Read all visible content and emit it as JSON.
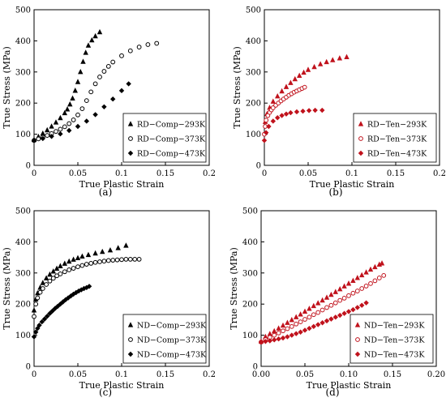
{
  "colors": {
    "black": "#000000",
    "red": "#c0121c"
  },
  "chart_data": [
    {
      "type": "scatter",
      "panel_label": "(a)",
      "xlabel": "True Plastic Strain",
      "ylabel": "True Stress (MPa)",
      "xlim": [
        0,
        0.2
      ],
      "ylim": [
        0,
        500
      ],
      "xticks": [
        "0",
        "0.05",
        "0.1",
        "0.15",
        "0.2"
      ],
      "yticks": [
        "0",
        "100",
        "200",
        "300",
        "400",
        "500"
      ],
      "legend_position": "bottom-right",
      "series": [
        {
          "name": "RD−Comp−293K",
          "marker": "triangle",
          "color": "#000000",
          "x": [
            0.0,
            0.005,
            0.01,
            0.015,
            0.02,
            0.025,
            0.03,
            0.035,
            0.038,
            0.041,
            0.044,
            0.047,
            0.05,
            0.053,
            0.056,
            0.059,
            0.062,
            0.066,
            0.07,
            0.075
          ],
          "y": [
            82,
            92,
            102,
            113,
            125,
            138,
            152,
            168,
            180,
            196,
            215,
            240,
            268,
            300,
            333,
            362,
            385,
            402,
            415,
            428
          ]
        },
        {
          "name": "RD−Comp−373K",
          "marker": "circle-open",
          "color": "#000000",
          "x": [
            0.0,
            0.005,
            0.01,
            0.015,
            0.02,
            0.025,
            0.03,
            0.035,
            0.04,
            0.045,
            0.05,
            0.055,
            0.06,
            0.065,
            0.07,
            0.075,
            0.08,
            0.085,
            0.09,
            0.1,
            0.11,
            0.12,
            0.13,
            0.14
          ],
          "y": [
            80,
            85,
            90,
            96,
            102,
            109,
            116,
            124,
            134,
            146,
            162,
            182,
            208,
            236,
            262,
            284,
            302,
            318,
            332,
            352,
            368,
            380,
            388,
            392
          ]
        },
        {
          "name": "RD−Comp−473K",
          "marker": "diamond",
          "color": "#000000",
          "x": [
            0.0,
            0.01,
            0.02,
            0.03,
            0.04,
            0.05,
            0.06,
            0.07,
            0.08,
            0.09,
            0.1,
            0.108
          ],
          "y": [
            80,
            86,
            93,
            101,
            112,
            125,
            142,
            163,
            188,
            213,
            240,
            262
          ]
        }
      ]
    },
    {
      "type": "scatter",
      "panel_label": "(b)",
      "xlabel": "True Plastic Strain",
      "ylabel": "True Stress (MPa)",
      "xlim": [
        0,
        0.2
      ],
      "ylim": [
        0,
        500
      ],
      "xticks": [
        "0",
        "0.05",
        "0.1",
        "0.15",
        "0.2"
      ],
      "yticks": [
        "0",
        "100",
        "200",
        "300",
        "400",
        "500"
      ],
      "legend_position": "bottom-right",
      "series": [
        {
          "name": "RD−Ten−293K",
          "marker": "triangle",
          "color": "#c0121c",
          "x": [
            0.001,
            0.003,
            0.006,
            0.01,
            0.015,
            0.02,
            0.025,
            0.03,
            0.035,
            0.04,
            0.045,
            0.05,
            0.057,
            0.064,
            0.071,
            0.078,
            0.086,
            0.094
          ],
          "y": [
            140,
            165,
            185,
            205,
            222,
            238,
            252,
            265,
            277,
            288,
            298,
            307,
            316,
            325,
            332,
            338,
            344,
            348
          ]
        },
        {
          "name": "RD−Ten−373K",
          "marker": "circle-open",
          "color": "#c0121c",
          "x": [
            0.0,
            0.001,
            0.002,
            0.004,
            0.006,
            0.008,
            0.01,
            0.013,
            0.016,
            0.019,
            0.022,
            0.025,
            0.028,
            0.031,
            0.034,
            0.037,
            0.04,
            0.043,
            0.046
          ],
          "y": [
            100,
            125,
            145,
            160,
            170,
            178,
            185,
            193,
            200,
            207,
            213,
            219,
            225,
            230,
            235,
            239,
            243,
            247,
            251
          ]
        },
        {
          "name": "RD−Ten−473K",
          "marker": "diamond",
          "color": "#c0121c",
          "x": [
            0.0,
            0.002,
            0.005,
            0.01,
            0.015,
            0.02,
            0.025,
            0.03,
            0.037,
            0.044,
            0.051,
            0.058,
            0.066
          ],
          "y": [
            80,
            105,
            125,
            142,
            153,
            160,
            165,
            169,
            172,
            174,
            176,
            177,
            177
          ]
        }
      ]
    },
    {
      "type": "scatter",
      "panel_label": "(c)",
      "xlabel": "True Plastic Strain",
      "ylabel": "True Stress (MPa)",
      "xlim": [
        0,
        0.2
      ],
      "ylim": [
        0,
        500
      ],
      "xticks": [
        "0",
        "0.05",
        "0.1",
        "0.15",
        "0.2"
      ],
      "yticks": [
        "0",
        "100",
        "200",
        "300",
        "400",
        "500"
      ],
      "legend_position": "bottom-right",
      "series": [
        {
          "name": "ND−Comp−293K",
          "marker": "triangle",
          "color": "#000000",
          "x": [
            0.0,
            0.002,
            0.004,
            0.007,
            0.01,
            0.014,
            0.018,
            0.022,
            0.026,
            0.03,
            0.035,
            0.04,
            0.045,
            0.05,
            0.055,
            0.062,
            0.07,
            0.078,
            0.087,
            0.096,
            0.105
          ],
          "y": [
            180,
            215,
            235,
            253,
            268,
            283,
            295,
            305,
            314,
            322,
            330,
            337,
            343,
            348,
            353,
            358,
            363,
            368,
            373,
            380,
            388
          ]
        },
        {
          "name": "ND−Comp−373K",
          "marker": "circle-open",
          "color": "#000000",
          "x": [
            0.0,
            0.002,
            0.004,
            0.007,
            0.01,
            0.014,
            0.018,
            0.022,
            0.026,
            0.03,
            0.035,
            0.04,
            0.045,
            0.05,
            0.055,
            0.06,
            0.065,
            0.07,
            0.075,
            0.08,
            0.085,
            0.09,
            0.095,
            0.1,
            0.105,
            0.11,
            0.115,
            0.12
          ],
          "y": [
            160,
            200,
            220,
            238,
            250,
            263,
            274,
            283,
            291,
            297,
            304,
            310,
            315,
            320,
            324,
            328,
            331,
            334,
            336,
            338,
            340,
            341,
            342,
            343,
            344,
            344,
            344,
            344
          ]
        },
        {
          "name": "ND−Comp−473K",
          "marker": "diamond",
          "color": "#000000",
          "x": [
            0.0,
            0.002,
            0.004,
            0.006,
            0.009,
            0.012,
            0.015,
            0.018,
            0.021,
            0.024,
            0.027,
            0.03,
            0.033,
            0.036,
            0.039,
            0.042,
            0.045,
            0.048,
            0.051,
            0.054,
            0.057,
            0.06,
            0.063
          ],
          "y": [
            95,
            110,
            122,
            132,
            143,
            152,
            161,
            170,
            178,
            186,
            193,
            200,
            207,
            214,
            220,
            226,
            232,
            237,
            242,
            246,
            250,
            253,
            257
          ]
        }
      ]
    },
    {
      "type": "scatter",
      "panel_label": "(d)",
      "xlabel": "True Plastic Strain",
      "ylabel": "True Stress (MPa)",
      "xlim": [
        0,
        0.2
      ],
      "ylim": [
        0,
        500
      ],
      "xticks": [
        "0.00",
        "0.05",
        "0.10",
        "0.15",
        "0.20"
      ],
      "yticks": [
        "0",
        "100",
        "200",
        "300",
        "400",
        "500"
      ],
      "legend_position": "bottom-right",
      "series": [
        {
          "name": "ND−Ten−293K",
          "marker": "triangle",
          "color": "#c0121c",
          "x": [
            0.0,
            0.005,
            0.01,
            0.015,
            0.02,
            0.025,
            0.03,
            0.035,
            0.04,
            0.045,
            0.05,
            0.055,
            0.06,
            0.065,
            0.07,
            0.075,
            0.08,
            0.085,
            0.09,
            0.095,
            0.1,
            0.105,
            0.11,
            0.115,
            0.12,
            0.125,
            0.13,
            0.135,
            0.138
          ],
          "y": [
            80,
            95,
            104,
            113,
            122,
            131,
            140,
            149,
            158,
            167,
            176,
            185,
            194,
            203,
            212,
            221,
            230,
            239,
            248,
            257,
            266,
            275,
            284,
            293,
            302,
            311,
            319,
            327,
            331
          ]
        },
        {
          "name": "ND−Ten−373K",
          "marker": "circle-open",
          "color": "#c0121c",
          "x": [
            0.0,
            0.005,
            0.01,
            0.015,
            0.02,
            0.025,
            0.03,
            0.035,
            0.04,
            0.045,
            0.05,
            0.055,
            0.06,
            0.065,
            0.07,
            0.075,
            0.08,
            0.085,
            0.09,
            0.095,
            0.1,
            0.105,
            0.11,
            0.115,
            0.12,
            0.125,
            0.13,
            0.135,
            0.14
          ],
          "y": [
            78,
            86,
            93,
            100,
            107,
            114,
            121,
            128,
            136,
            143,
            151,
            158,
            166,
            173,
            181,
            189,
            196,
            204,
            212,
            219,
            227,
            235,
            242,
            250,
            258,
            266,
            275,
            284,
            292
          ]
        },
        {
          "name": "ND−Ten−473K",
          "marker": "diamond",
          "color": "#c0121c",
          "x": [
            0.0,
            0.005,
            0.01,
            0.015,
            0.02,
            0.025,
            0.03,
            0.035,
            0.04,
            0.045,
            0.05,
            0.055,
            0.06,
            0.065,
            0.07,
            0.075,
            0.08,
            0.085,
            0.09,
            0.095,
            0.1,
            0.105,
            0.11,
            0.115,
            0.12
          ],
          "y": [
            78,
            80,
            82,
            85,
            88,
            91,
            95,
            100,
            105,
            110,
            116,
            122,
            128,
            134,
            140,
            146,
            152,
            158,
            164,
            170,
            176,
            182,
            189,
            196,
            204
          ]
        }
      ]
    }
  ]
}
